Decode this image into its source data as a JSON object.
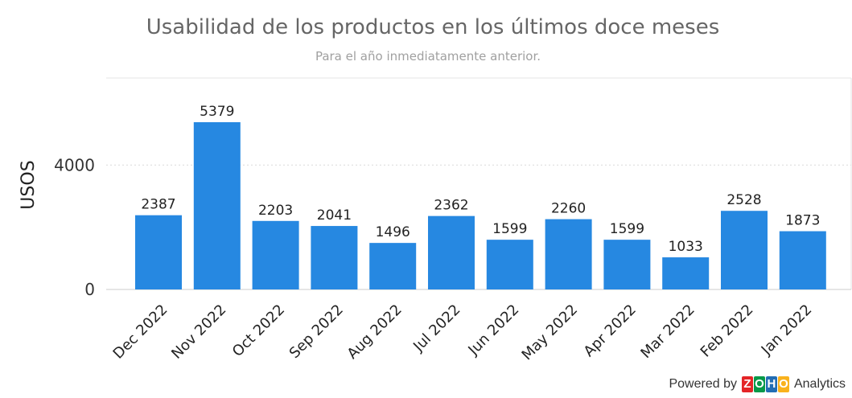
{
  "chart_data": {
    "type": "bar",
    "title": "Usabilidad de los productos en los últimos doce meses",
    "subtitle": "Para el año inmediatamente anterior.",
    "xlabel": "",
    "ylabel": "USOS",
    "categories": [
      "Dec 2022",
      "Nov 2022",
      "Oct 2022",
      "Sep 2022",
      "Aug 2022",
      "Jul 2022",
      "Jun 2022",
      "May 2022",
      "Apr 2022",
      "Mar 2022",
      "Feb 2022",
      "Jan 2022"
    ],
    "values": [
      2387,
      5379,
      2203,
      2041,
      1496,
      2362,
      1599,
      2260,
      1599,
      1033,
      2528,
      1873
    ],
    "ylim": [
      0,
      6800
    ],
    "yticks": [
      0,
      4000
    ],
    "grid": true,
    "bar_color": "#2688e1",
    "gridline_color": "#d9d9d9"
  },
  "footer": {
    "powered_by": "Powered by",
    "brand_letters": [
      "Z",
      "O",
      "H",
      "O"
    ],
    "brand_colors": [
      "#e42527",
      "#089949",
      "#226db4",
      "#f9b21d"
    ],
    "product": "Analytics"
  }
}
